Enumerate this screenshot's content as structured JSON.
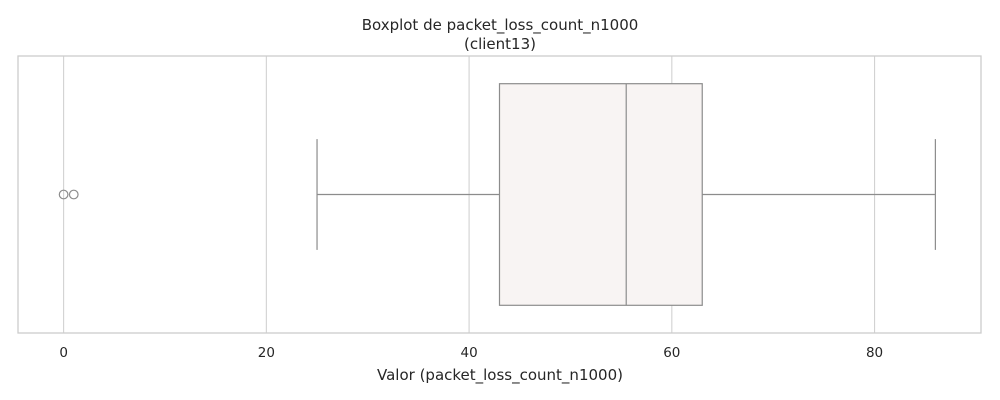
{
  "chart_data": {
    "type": "boxplot",
    "title": "Boxplot de packet_loss_count_n1000",
    "subtitle": "(client13)",
    "xlabel": "Valor (packet_loss_count_n1000)",
    "ylabel": "",
    "xlim": [
      -4.5,
      90.5
    ],
    "xticks": [
      0,
      20,
      40,
      60,
      80
    ],
    "grid": "vertical",
    "box": {
      "whisker_low": 25,
      "q1": 43,
      "median": 55.5,
      "q3": 63,
      "whisker_high": 86,
      "outliers": [
        0,
        1
      ]
    },
    "colors": {
      "box_fill": "#f8f4f3",
      "box_edge": "#8c8c8c",
      "grid": "#d2d2d2",
      "frame": "#cccccc"
    }
  }
}
